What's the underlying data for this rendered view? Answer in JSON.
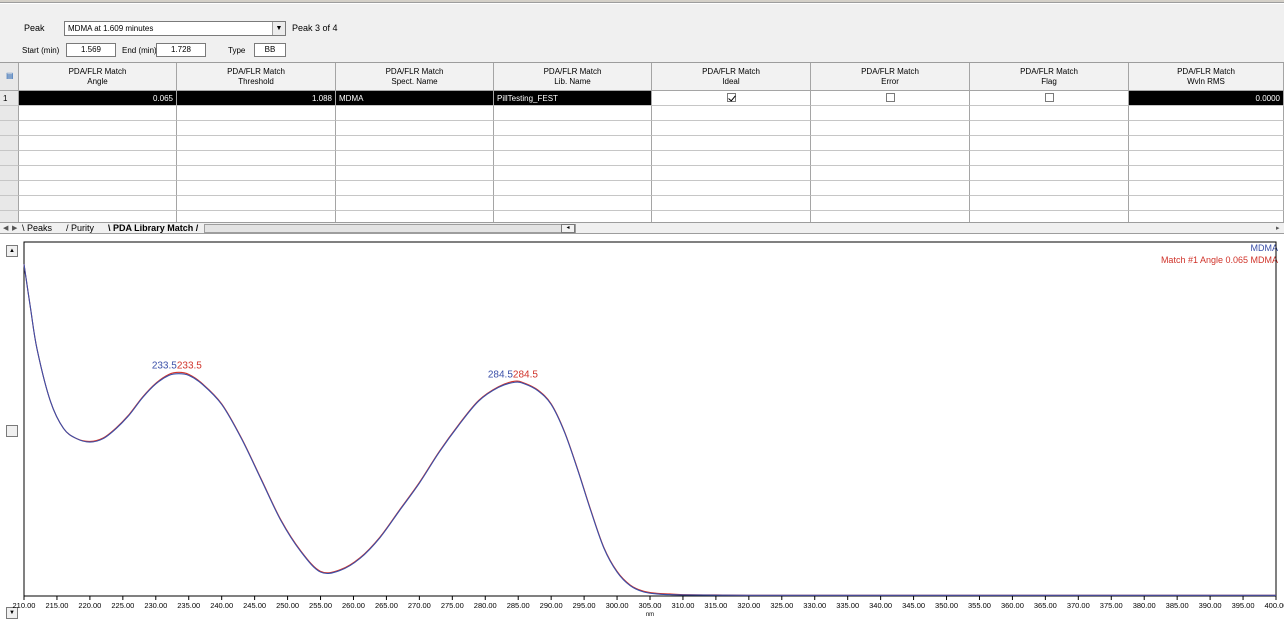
{
  "toolbar": {
    "peak_label": "Peak",
    "peak_value": "MDMA at 1.609 minutes",
    "peak_count": "Peak 3 of 4",
    "start_label": "Start (min)",
    "start_value": "1.569",
    "end_label": "End (min)",
    "end_value": "1.728",
    "type_label": "Type",
    "type_value": "BB"
  },
  "grid": {
    "columns": [
      {
        "line1": "PDA/FLR Match",
        "line2": "Angle"
      },
      {
        "line1": "PDA/FLR Match",
        "line2": "Threshold"
      },
      {
        "line1": "PDA/FLR Match",
        "line2": "Spect. Name"
      },
      {
        "line1": "PDA/FLR Match",
        "line2": "Lib. Name"
      },
      {
        "line1": "PDA/FLR Match",
        "line2": "Ideal"
      },
      {
        "line1": "PDA/FLR Match",
        "line2": "Error"
      },
      {
        "line1": "PDA/FLR Match",
        "line2": "Flag"
      },
      {
        "line1": "PDA/FLR Match",
        "line2": "Wvln RMS"
      }
    ],
    "row1": {
      "index": "1",
      "angle": "0.065",
      "threshold": "1.088",
      "spect_name": "MDMA",
      "lib_name": "PillTesting_FEST",
      "ideal_checked": true,
      "error_checked": false,
      "flag_checked": false,
      "wvln_rms": "0.0000"
    }
  },
  "tabs": [
    {
      "label": "Peaks",
      "active": false
    },
    {
      "label": "Purity",
      "active": false
    },
    {
      "label": "PDA Library Match",
      "active": true
    }
  ],
  "legend": {
    "series1": "MDMA",
    "series2": "Match #1 Angle 0.065 MDMA"
  },
  "colors": {
    "spectrum": "#3a4fa8",
    "match": "#d0332a"
  },
  "chart_data": {
    "type": "line",
    "xlabel": "nm",
    "xlim": [
      210,
      400
    ],
    "ylim": [
      0,
      1
    ],
    "x_ticks": [
      "210.00",
      "215.00",
      "220.00",
      "225.00",
      "230.00",
      "235.00",
      "240.00",
      "245.00",
      "250.00",
      "255.00",
      "260.00",
      "265.00",
      "270.00",
      "275.00",
      "280.00",
      "285.00",
      "290.00",
      "295.00",
      "300.00",
      "305.00",
      "310.00",
      "315.00",
      "320.00",
      "325.00",
      "330.00",
      "335.00",
      "340.00",
      "345.00",
      "350.00",
      "355.00",
      "360.00",
      "365.00",
      "370.00",
      "375.00",
      "380.00",
      "385.00",
      "390.00",
      "395.00",
      "400.00"
    ],
    "series": [
      {
        "name": "MDMA",
        "x": [
          210,
          211,
          212,
          214,
          216,
          218,
          220,
          222,
          224,
          226,
          228,
          230,
          232,
          233.5,
          235,
          237,
          240,
          243,
          246,
          249,
          252,
          255,
          258,
          261,
          264,
          267,
          270,
          273,
          276,
          279,
          282,
          284.5,
          286,
          288,
          290,
          292,
          294,
          296,
          298,
          300,
          302,
          304,
          306,
          308,
          310,
          315,
          320,
          330,
          340,
          360,
          380,
          400
        ],
        "y": [
          0.97,
          0.84,
          0.72,
          0.57,
          0.49,
          0.46,
          0.45,
          0.46,
          0.49,
          0.53,
          0.58,
          0.62,
          0.645,
          0.65,
          0.645,
          0.62,
          0.56,
          0.46,
          0.34,
          0.22,
          0.13,
          0.07,
          0.075,
          0.11,
          0.17,
          0.25,
          0.33,
          0.42,
          0.5,
          0.57,
          0.61,
          0.625,
          0.62,
          0.6,
          0.56,
          0.48,
          0.37,
          0.25,
          0.14,
          0.07,
          0.03,
          0.012,
          0.006,
          0.004,
          0.003,
          0.0025,
          0.002,
          0.002,
          0.002,
          0.002,
          0.002,
          0.002
        ]
      },
      {
        "name": "Match #1 Angle 0.065 MDMA",
        "x": [
          210,
          211,
          212,
          214,
          216,
          218,
          220,
          222,
          224,
          226,
          228,
          230,
          232,
          233.5,
          235,
          237,
          240,
          243,
          246,
          249,
          252,
          255,
          258,
          261,
          264,
          267,
          270,
          273,
          276,
          279,
          282,
          284.5,
          286,
          288,
          290,
          292,
          294,
          296,
          298,
          300,
          302,
          304,
          306,
          308,
          310,
          315,
          320,
          330,
          340,
          360,
          380,
          400
        ],
        "y": [
          0.97,
          0.84,
          0.72,
          0.57,
          0.49,
          0.46,
          0.452,
          0.462,
          0.492,
          0.532,
          0.582,
          0.622,
          0.648,
          0.654,
          0.648,
          0.622,
          0.562,
          0.462,
          0.342,
          0.222,
          0.132,
          0.072,
          0.077,
          0.112,
          0.172,
          0.252,
          0.332,
          0.422,
          0.502,
          0.572,
          0.612,
          0.628,
          0.622,
          0.602,
          0.562,
          0.482,
          0.372,
          0.252,
          0.142,
          0.072,
          0.032,
          0.014,
          0.008,
          0.006,
          0.004,
          0.003,
          0.002,
          0.002,
          0.002,
          0.002,
          0.002,
          0.002
        ]
      }
    ],
    "annotations": [
      {
        "x": 233.5,
        "text_blue": "233.5",
        "text_red": "233.5"
      },
      {
        "x": 284.5,
        "text_blue": "284.5",
        "text_red": "284.5"
      }
    ]
  }
}
